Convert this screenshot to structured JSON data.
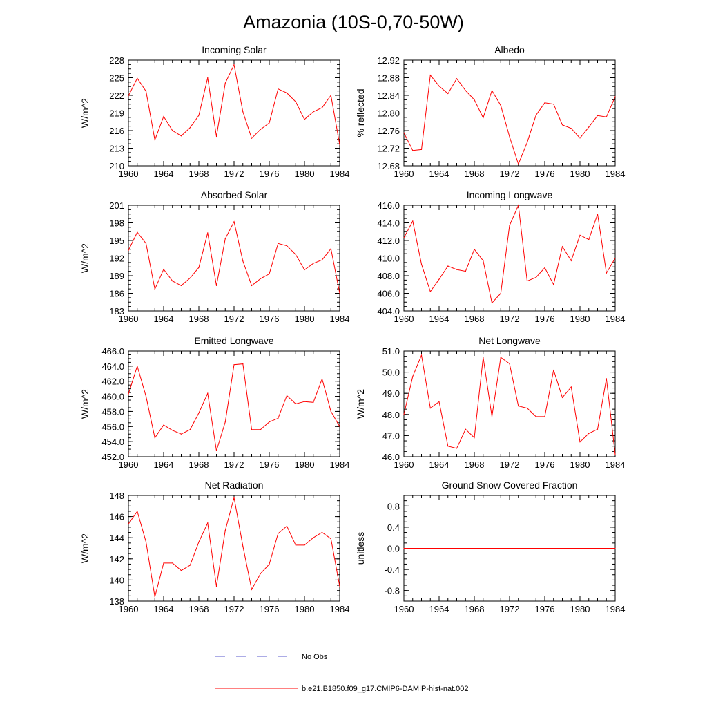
{
  "figure": {
    "title": "Amazonia (10S-0,70-50W)",
    "legend": [
      {
        "label": "No Obs",
        "color": "#5a5acd",
        "style": "dashed"
      },
      {
        "label": "b.e21.B1850.f09_g17.CMIP6-DAMIP-hist-nat.002",
        "color": "#ff0000",
        "style": "solid"
      }
    ]
  },
  "chart_data": [
    {
      "type": "line",
      "title": "Incoming Solar",
      "ylabel": "W/m^2",
      "xlim": [
        1960,
        1984
      ],
      "ylim": [
        210,
        228
      ],
      "xticks": [
        "1960",
        "1964",
        "1968",
        "1972",
        "1976",
        "1980",
        "1984"
      ],
      "yticks": [
        "210",
        "213",
        "216",
        "219",
        "222",
        "225",
        "228"
      ],
      "series": [
        {
          "color": "#ff0000",
          "x": [
            1960,
            1961,
            1962,
            1963,
            1964,
            1965,
            1966,
            1967,
            1968,
            1969,
            1970,
            1971,
            1972,
            1973,
            1974,
            1975,
            1976,
            1977,
            1978,
            1979,
            1980,
            1981,
            1982,
            1983,
            1984
          ],
          "y": [
            221.9,
            224.9,
            222.7,
            214.4,
            218.4,
            216.0,
            215.1,
            216.5,
            218.6,
            225.0,
            215.0,
            224.1,
            227.2,
            219.2,
            214.7,
            216.2,
            217.3,
            223.1,
            222.4,
            220.9,
            217.9,
            219.2,
            219.9,
            222.0,
            213.6
          ]
        }
      ]
    },
    {
      "type": "line",
      "title": "Albedo",
      "ylabel": "% reflected",
      "xlim": [
        1960,
        1984
      ],
      "ylim": [
        12.68,
        12.92
      ],
      "xticks": [
        "1960",
        "1964",
        "1968",
        "1972",
        "1976",
        "1980",
        "1984"
      ],
      "yticks": [
        "12.68",
        "12.72",
        "12.76",
        "12.80",
        "12.84",
        "12.88",
        "12.92"
      ],
      "series": [
        {
          "color": "#ff0000",
          "x": [
            1960,
            1961,
            1962,
            1963,
            1964,
            1965,
            1966,
            1967,
            1968,
            1969,
            1970,
            1971,
            1972,
            1973,
            1974,
            1975,
            1976,
            1977,
            1978,
            1979,
            1980,
            1981,
            1982,
            1983,
            1984
          ],
          "y": [
            12.755,
            12.715,
            12.717,
            12.886,
            12.861,
            12.844,
            12.878,
            12.851,
            12.83,
            12.789,
            12.851,
            12.817,
            12.746,
            12.684,
            12.733,
            12.795,
            12.823,
            12.82,
            12.773,
            12.765,
            12.743,
            12.768,
            12.794,
            12.791,
            12.837
          ]
        }
      ]
    },
    {
      "type": "line",
      "title": "Absorbed Solar",
      "ylabel": "W/m^2",
      "xlim": [
        1960,
        1984
      ],
      "ylim": [
        183,
        201
      ],
      "xticks": [
        "1960",
        "1964",
        "1968",
        "1972",
        "1976",
        "1980",
        "1984"
      ],
      "yticks": [
        "183",
        "186",
        "189",
        "192",
        "195",
        "198",
        "201"
      ],
      "series": [
        {
          "color": "#ff0000",
          "x": [
            1960,
            1961,
            1962,
            1963,
            1964,
            1965,
            1966,
            1967,
            1968,
            1969,
            1970,
            1971,
            1972,
            1973,
            1974,
            1975,
            1976,
            1977,
            1978,
            1979,
            1980,
            1981,
            1982,
            1983,
            1984
          ],
          "y": [
            193.3,
            196.4,
            194.5,
            186.7,
            190.1,
            188.1,
            187.3,
            188.6,
            190.4,
            196.3,
            187.3,
            195.3,
            198.2,
            191.5,
            187.3,
            188.5,
            189.3,
            194.5,
            194.1,
            192.6,
            190.0,
            191.1,
            191.7,
            193.6,
            186.0
          ]
        }
      ]
    },
    {
      "type": "line",
      "title": "Incoming Longwave",
      "ylabel": "",
      "xlim": [
        1960,
        1984
      ],
      "ylim": [
        404,
        416
      ],
      "xticks": [
        "1960",
        "1964",
        "1968",
        "1972",
        "1976",
        "1980",
        "1984"
      ],
      "yticks": [
        "404.0",
        "406.0",
        "408.0",
        "410.0",
        "412.0",
        "414.0",
        "416.0"
      ],
      "series": [
        {
          "color": "#ff0000",
          "x": [
            1960,
            1961,
            1962,
            1963,
            1964,
            1965,
            1966,
            1967,
            1968,
            1969,
            1970,
            1971,
            1972,
            1973,
            1974,
            1975,
            1976,
            1977,
            1978,
            1979,
            1980,
            1981,
            1982,
            1983,
            1984
          ],
          "y": [
            412.3,
            414.2,
            409.3,
            406.2,
            407.6,
            409.1,
            408.7,
            408.5,
            411.0,
            409.7,
            404.9,
            406.0,
            413.7,
            416.0,
            407.4,
            407.8,
            408.9,
            407.0,
            411.3,
            409.7,
            412.6,
            412.1,
            415.0,
            408.3,
            410.0
          ]
        }
      ]
    },
    {
      "type": "line",
      "title": "Emitted Longwave",
      "ylabel": "W/m^2",
      "xlim": [
        1960,
        1984
      ],
      "ylim": [
        452,
        466
      ],
      "xticks": [
        "1960",
        "1964",
        "1968",
        "1972",
        "1976",
        "1980",
        "1984"
      ],
      "yticks": [
        "452.0",
        "454.0",
        "456.0",
        "458.0",
        "460.0",
        "462.0",
        "464.0",
        "466.0"
      ],
      "series": [
        {
          "color": "#ff0000",
          "x": [
            1960,
            1961,
            1962,
            1963,
            1964,
            1965,
            1966,
            1967,
            1968,
            1969,
            1970,
            1971,
            1972,
            1973,
            1974,
            1975,
            1976,
            1977,
            1978,
            1979,
            1980,
            1981,
            1982,
            1983,
            1984
          ],
          "y": [
            460.3,
            464.0,
            460.0,
            454.5,
            456.2,
            455.5,
            455.0,
            455.6,
            457.8,
            460.4,
            452.8,
            456.6,
            464.2,
            464.3,
            455.6,
            455.6,
            456.6,
            457.1,
            460.1,
            459.0,
            459.3,
            459.2,
            462.3,
            458.0,
            456.0
          ]
        }
      ]
    },
    {
      "type": "line",
      "title": "Net Longwave",
      "ylabel": "W/m^2",
      "xlim": [
        1960,
        1984
      ],
      "ylim": [
        46,
        51
      ],
      "xticks": [
        "1960",
        "1964",
        "1968",
        "1972",
        "1976",
        "1980",
        "1984"
      ],
      "yticks": [
        "46.0",
        "47.0",
        "48.0",
        "49.0",
        "50.0",
        "51.0"
      ],
      "series": [
        {
          "color": "#ff0000",
          "x": [
            1960,
            1961,
            1962,
            1963,
            1964,
            1965,
            1966,
            1967,
            1968,
            1969,
            1970,
            1971,
            1972,
            1973,
            1974,
            1975,
            1976,
            1977,
            1978,
            1979,
            1980,
            1981,
            1982,
            1983,
            1984
          ],
          "y": [
            48.0,
            49.8,
            50.8,
            48.3,
            48.6,
            46.5,
            46.4,
            47.3,
            46.9,
            50.7,
            47.9,
            50.7,
            50.4,
            48.4,
            48.3,
            47.9,
            47.9,
            50.1,
            48.8,
            49.3,
            46.7,
            47.1,
            47.3,
            49.7,
            46.1
          ]
        }
      ]
    },
    {
      "type": "line",
      "title": "Net Radiation",
      "ylabel": "W/m^2",
      "xlim": [
        1960,
        1984
      ],
      "ylim": [
        138,
        148
      ],
      "xticks": [
        "1960",
        "1964",
        "1968",
        "1972",
        "1976",
        "1980",
        "1984"
      ],
      "yticks": [
        "138",
        "140",
        "142",
        "144",
        "146",
        "148"
      ],
      "series": [
        {
          "color": "#ff0000",
          "x": [
            1960,
            1961,
            1962,
            1963,
            1964,
            1965,
            1966,
            1967,
            1968,
            1969,
            1970,
            1971,
            1972,
            1973,
            1974,
            1975,
            1976,
            1977,
            1978,
            1979,
            1980,
            1981,
            1982,
            1983,
            1984
          ],
          "y": [
            145.3,
            146.5,
            143.6,
            138.4,
            141.6,
            141.6,
            140.9,
            141.4,
            143.6,
            145.4,
            139.4,
            144.7,
            147.8,
            143.2,
            139.1,
            140.6,
            141.5,
            144.4,
            145.1,
            143.3,
            143.3,
            144.0,
            144.5,
            143.9,
            139.4
          ]
        }
      ]
    },
    {
      "type": "line",
      "title": "Ground Snow Covered Fraction",
      "ylabel": "unitless",
      "xlim": [
        1960,
        1984
      ],
      "ylim": [
        -1.0,
        1.0
      ],
      "xticks": [
        "1960",
        "1964",
        "1968",
        "1972",
        "1976",
        "1980",
        "1984"
      ],
      "yticks": [
        "-0.8",
        "-0.4",
        "0.0",
        "0.4",
        "0.8"
      ],
      "series": [
        {
          "color": "#ff0000",
          "x": [
            1960,
            1984
          ],
          "y": [
            0.0,
            0.0
          ]
        }
      ]
    }
  ]
}
